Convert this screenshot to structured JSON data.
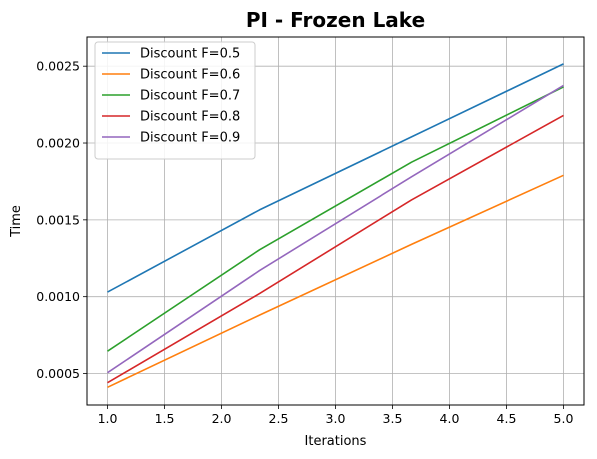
{
  "chart_data": {
    "type": "line",
    "title": "PI - Frozen Lake",
    "xlabel": "Iterations",
    "ylabel": "Time",
    "xlim": [
      0.82,
      5.18
    ],
    "ylim": [
      0.000295,
      0.00269
    ],
    "xticks": [
      1.0,
      1.5,
      2.0,
      2.5,
      3.0,
      3.5,
      4.0,
      4.5,
      5.0
    ],
    "xtick_labels": [
      "1.0",
      "1.5",
      "2.0",
      "2.5",
      "3.0",
      "3.5",
      "4.0",
      "4.5",
      "5.0"
    ],
    "yticks": [
      0.0005,
      0.001,
      0.0015,
      0.002,
      0.0025
    ],
    "ytick_labels": [
      "0.0005",
      "0.0010",
      "0.0015",
      "0.0020",
      "0.0025"
    ],
    "grid": true,
    "legend_position": "top-left",
    "series": [
      {
        "name": "Discount F=0.5",
        "color": "#1f77b4",
        "x": [
          1.0,
          2.333,
          3.667,
          5.0
        ],
        "y": [
          0.00103,
          0.001565,
          0.00204,
          0.002515
        ]
      },
      {
        "name": "Discount F=0.6",
        "color": "#ff7f0e",
        "x": [
          1.0,
          2.333,
          3.667,
          5.0
        ],
        "y": [
          0.00041,
          0.00088,
          0.00134,
          0.00179
        ]
      },
      {
        "name": "Discount F=0.7",
        "color": "#2ca02c",
        "x": [
          1.0,
          2.333,
          3.667,
          5.0
        ],
        "y": [
          0.000645,
          0.001305,
          0.001875,
          0.002365
        ]
      },
      {
        "name": "Discount F=0.8",
        "color": "#d62728",
        "x": [
          1.0,
          2.333,
          3.667,
          5.0
        ],
        "y": [
          0.00044,
          0.00102,
          0.00163,
          0.00218
        ]
      },
      {
        "name": "Discount F=0.9",
        "color": "#9467bd",
        "x": [
          1.0,
          2.333,
          3.667,
          5.0
        ],
        "y": [
          0.000505,
          0.00117,
          0.00178,
          0.002375
        ]
      }
    ]
  }
}
